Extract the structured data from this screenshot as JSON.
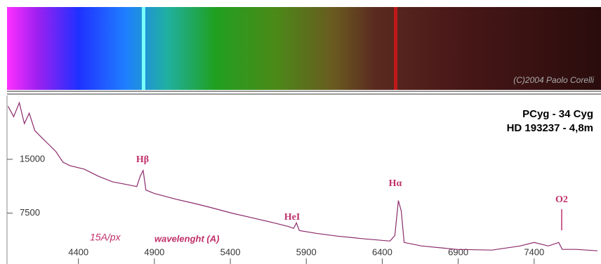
{
  "chart_data": {
    "type": "line",
    "copyright": "(C)2004 Paolo Corelli",
    "title": "PCyg - 34 Cyg",
    "subtitle": "HD 193237 - 4,8m",
    "dispersion": "15A/px",
    "x_label": "wavelenght (A)",
    "annotations": [
      "Hβ",
      "HeI",
      "Hα",
      "O2"
    ],
    "color": "#8b2a6b",
    "xlim": [
      3930,
      7840
    ],
    "ylim": [
      400,
      23900
    ],
    "xticks": [
      4400,
      4900,
      5400,
      5900,
      6400,
      6900,
      7400
    ],
    "yticks": [
      7500,
      15000
    ],
    "x": [
      3937,
      3974,
      4011,
      4044,
      4076,
      4113,
      4159,
      4206,
      4252,
      4298,
      4344,
      4437,
      4530,
      4622,
      4715,
      4784,
      4807,
      4826,
      4844,
      4900,
      5039,
      5178,
      5270,
      5409,
      5548,
      5687,
      5780,
      5817,
      5835,
      5854,
      5965,
      6104,
      6289,
      6451,
      6483,
      6506,
      6525,
      6544,
      6659,
      6891,
      7122,
      7307,
      7400,
      7493,
      7562,
      7585,
      7678,
      7817
    ],
    "values": [
      22400,
      20940,
      22890,
      19970,
      21430,
      18990,
      18020,
      17050,
      16070,
      14610,
      14120,
      13640,
      12660,
      11880,
      11490,
      11200,
      12660,
      13440,
      10710,
      10230,
      9450,
      8770,
      8280,
      7500,
      6820,
      6140,
      5650,
      5360,
      6140,
      5060,
      4680,
      4290,
      3900,
      3600,
      4380,
      9250,
      7790,
      3410,
      2920,
      2440,
      2340,
      2920,
      3410,
      2920,
      3410,
      2440,
      2440,
      2240
    ]
  }
}
